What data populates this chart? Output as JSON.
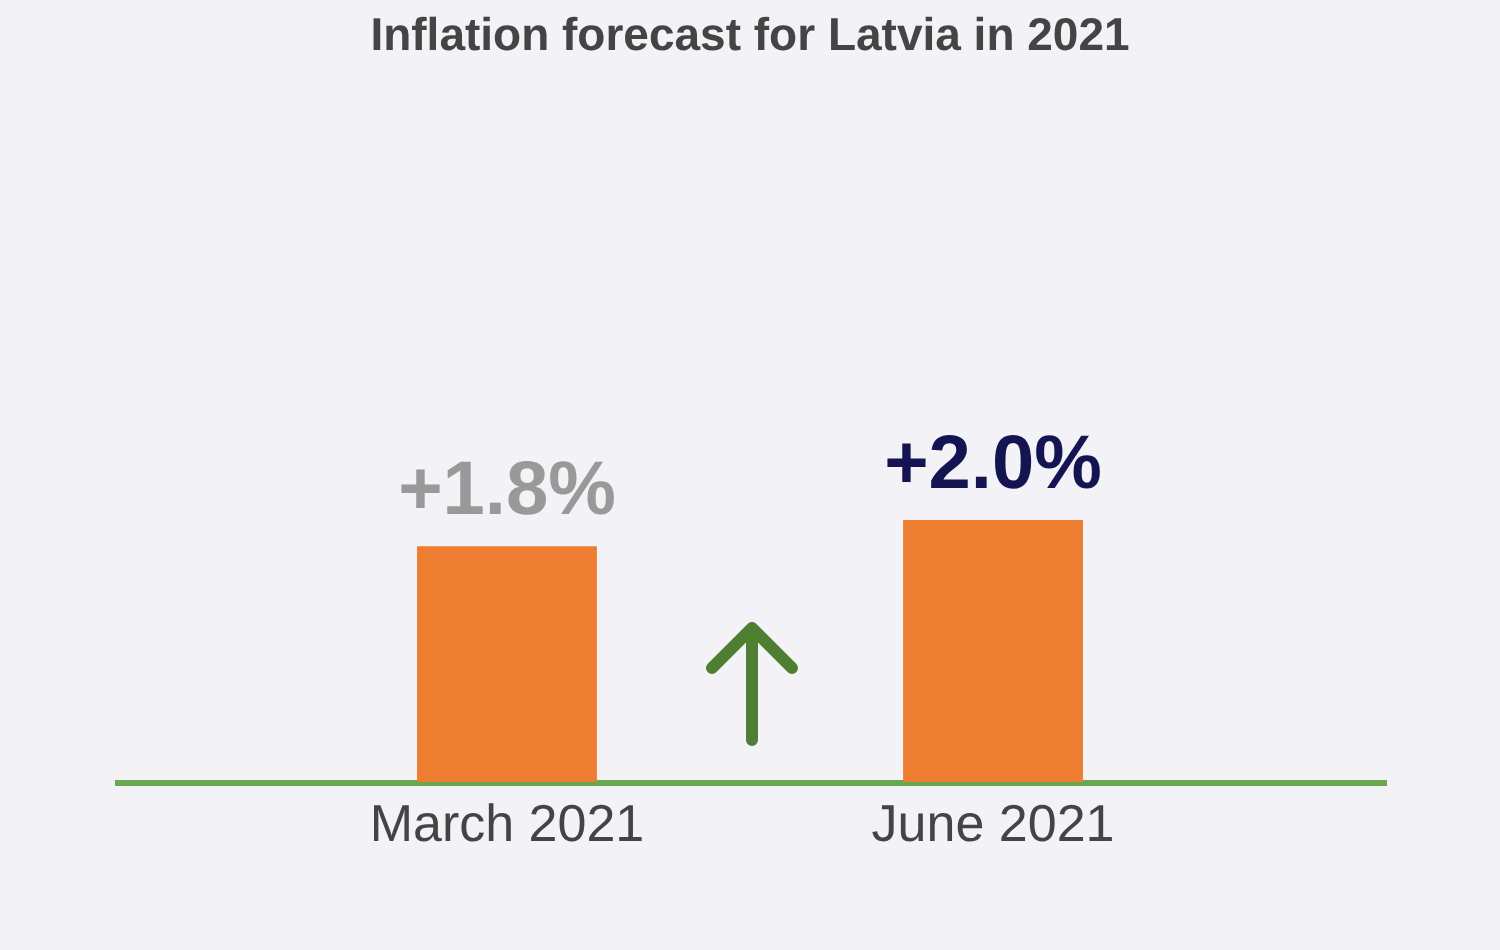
{
  "chart_data": {
    "type": "bar",
    "title": "Inflation forecast for Latvia in 2021",
    "categories": [
      "March 2021",
      "June 2021"
    ],
    "values": [
      1.8,
      2.0
    ],
    "value_labels": [
      "+1.8%",
      "+2.0%"
    ],
    "color": "#ed7d31",
    "grid": false
  }
}
